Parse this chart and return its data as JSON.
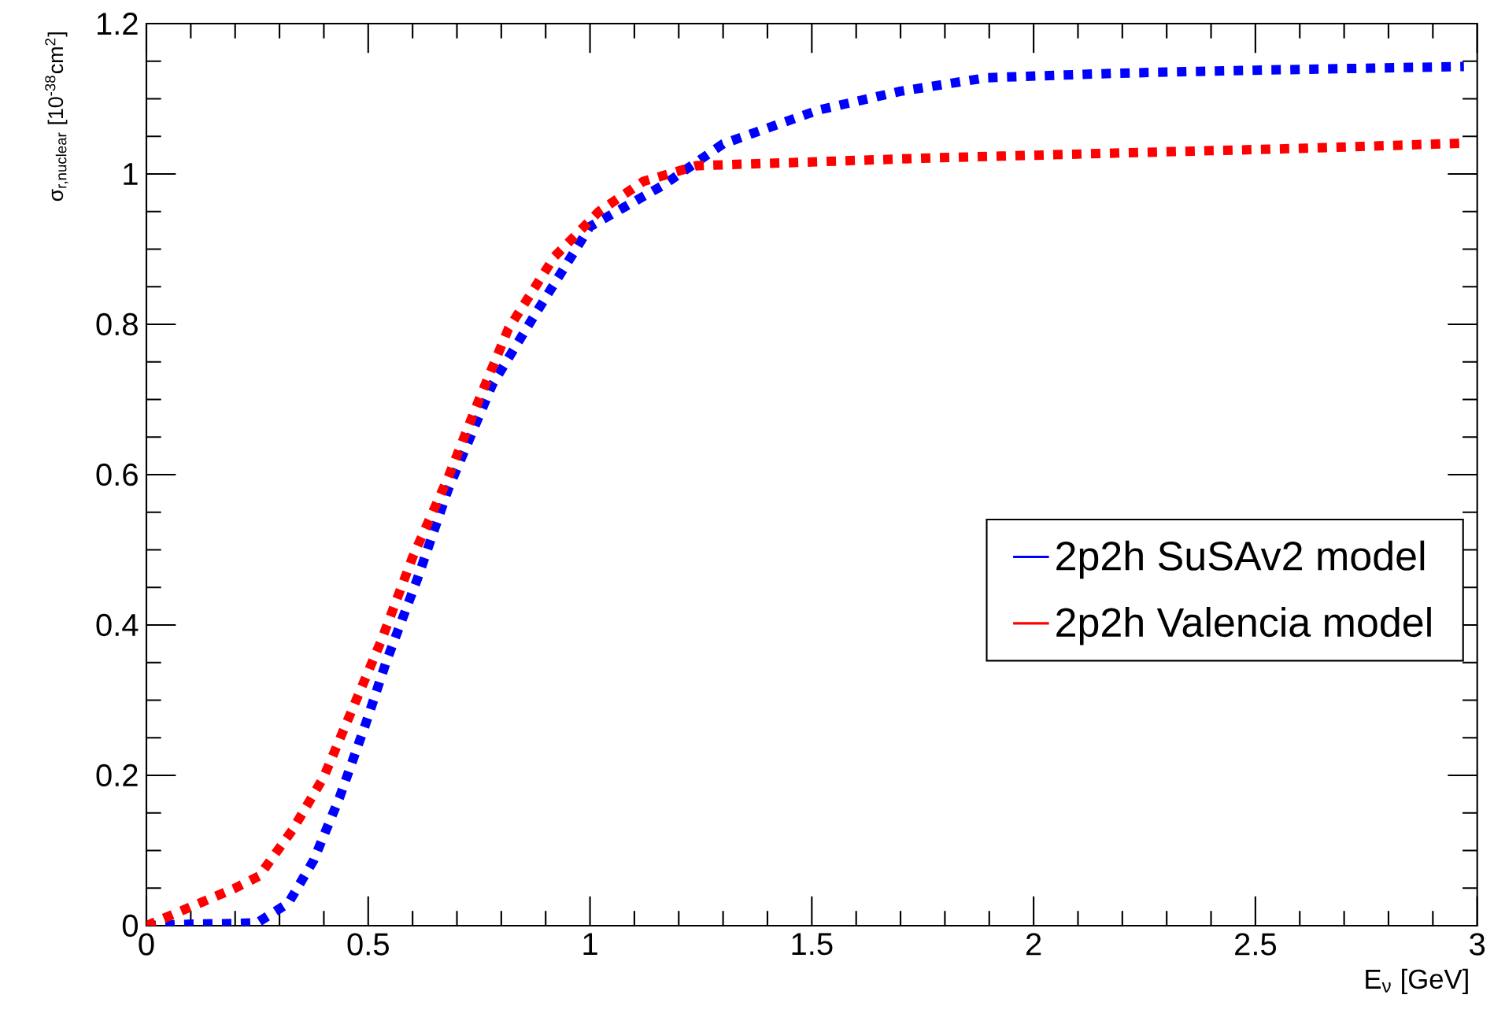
{
  "chart_data": {
    "type": "line",
    "xlabel": "E$_{ν}$ [GeV]",
    "ylabel": "σ$_{r,nuclear}$ [10$^{-38}$cm$^{2}$]",
    "xlim": [
      0,
      3
    ],
    "ylim": [
      0,
      1.2
    ],
    "xticks": [
      0,
      0.5,
      1,
      1.5,
      2,
      2.5,
      3
    ],
    "yticks": [
      0,
      0.2,
      0.4,
      0.6,
      0.8,
      1,
      1.2
    ],
    "legend": "right",
    "line_style": "dotted",
    "series": [
      {
        "name": "2p2h SuSAv2 model",
        "color": "#0000ff",
        "x": [
          0,
          0.1,
          0.2,
          0.25,
          0.32,
          0.377,
          0.435,
          0.494,
          0.54,
          0.61,
          0.68,
          0.78,
          0.875,
          1.0,
          1.165,
          1.3,
          1.515,
          1.7,
          1.894,
          2.185,
          2.5,
          2.97
        ],
        "values": [
          0,
          0.002,
          0.003,
          0.004,
          0.03,
          0.087,
          0.17,
          0.268,
          0.35,
          0.46,
          0.58,
          0.72,
          0.812,
          0.93,
          0.985,
          1.04,
          1.085,
          1.11,
          1.128,
          1.134,
          1.138,
          1.143
        ]
      },
      {
        "name": "2p2h Valencia model",
        "color": "#ff0000",
        "x": [
          0,
          0.1,
          0.2,
          0.254,
          0.33,
          0.4,
          0.47,
          0.53,
          0.6,
          0.68,
          0.75,
          0.816,
          0.92,
          1.02,
          1.12,
          1.24,
          1.5,
          1.75,
          2.2,
          2.6,
          2.97
        ],
        "values": [
          0,
          0.025,
          0.05,
          0.066,
          0.128,
          0.198,
          0.296,
          0.38,
          0.49,
          0.596,
          0.7,
          0.794,
          0.89,
          0.95,
          0.99,
          1.011,
          1.016,
          1.021,
          1.028,
          1.034,
          1.041
        ]
      }
    ]
  }
}
